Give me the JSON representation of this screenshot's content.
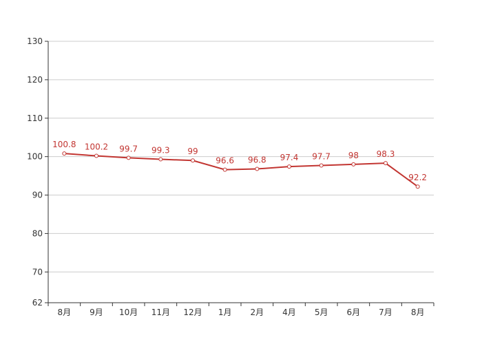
{
  "chart_data": {
    "type": "line",
    "categories": [
      "8月",
      "9月",
      "10月",
      "11月",
      "12月",
      "1月",
      "2月",
      "4月",
      "5月",
      "6月",
      "7月",
      "8月"
    ],
    "series": [
      {
        "values": [
          100.8,
          100.2,
          99.7,
          99.3,
          99,
          96.6,
          96.8,
          97.4,
          97.7,
          98,
          98.3,
          92.2
        ]
      }
    ],
    "y_ticks": [
      62,
      70,
      80,
      90,
      100,
      110,
      120,
      130
    ],
    "ylim": [
      62,
      130
    ],
    "grid": true,
    "title": "",
    "xlabel": "",
    "ylabel": "",
    "colors": {
      "line": "#c23531",
      "grid": "#cccccc",
      "axis": "#333333"
    }
  }
}
